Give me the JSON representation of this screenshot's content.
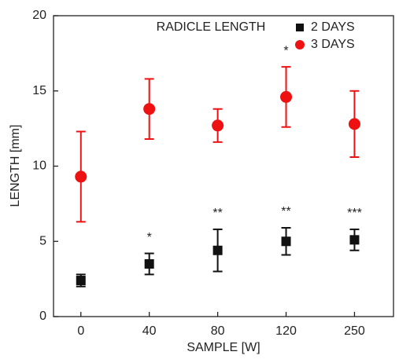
{
  "chart_data": {
    "type": "scatter",
    "title": "RADICLE LENGTH",
    "x_label": "SAMPLE [W]",
    "y_label": "LENGTH [mm]",
    "categories": [
      "0",
      "40",
      "80",
      "120",
      "250"
    ],
    "ylim": [
      0,
      20
    ],
    "yticks": [
      0,
      5,
      10,
      15,
      20
    ],
    "series": [
      {
        "name": "2 DAYS",
        "color": "#111111",
        "marker": "square",
        "values": [
          2.4,
          3.5,
          4.4,
          5.0,
          5.1
        ],
        "errors": [
          0.4,
          0.7,
          1.4,
          0.9,
          0.7
        ],
        "significance": [
          null,
          "*",
          "**",
          "**",
          "***"
        ]
      },
      {
        "name": "3 DAYS",
        "color": "#ee1111",
        "marker": "circle",
        "values": [
          9.3,
          13.8,
          12.7,
          14.6,
          12.8
        ],
        "errors": [
          3.0,
          2.0,
          1.1,
          2.0,
          2.2
        ],
        "significance": [
          null,
          null,
          null,
          "*",
          null
        ]
      }
    ]
  }
}
